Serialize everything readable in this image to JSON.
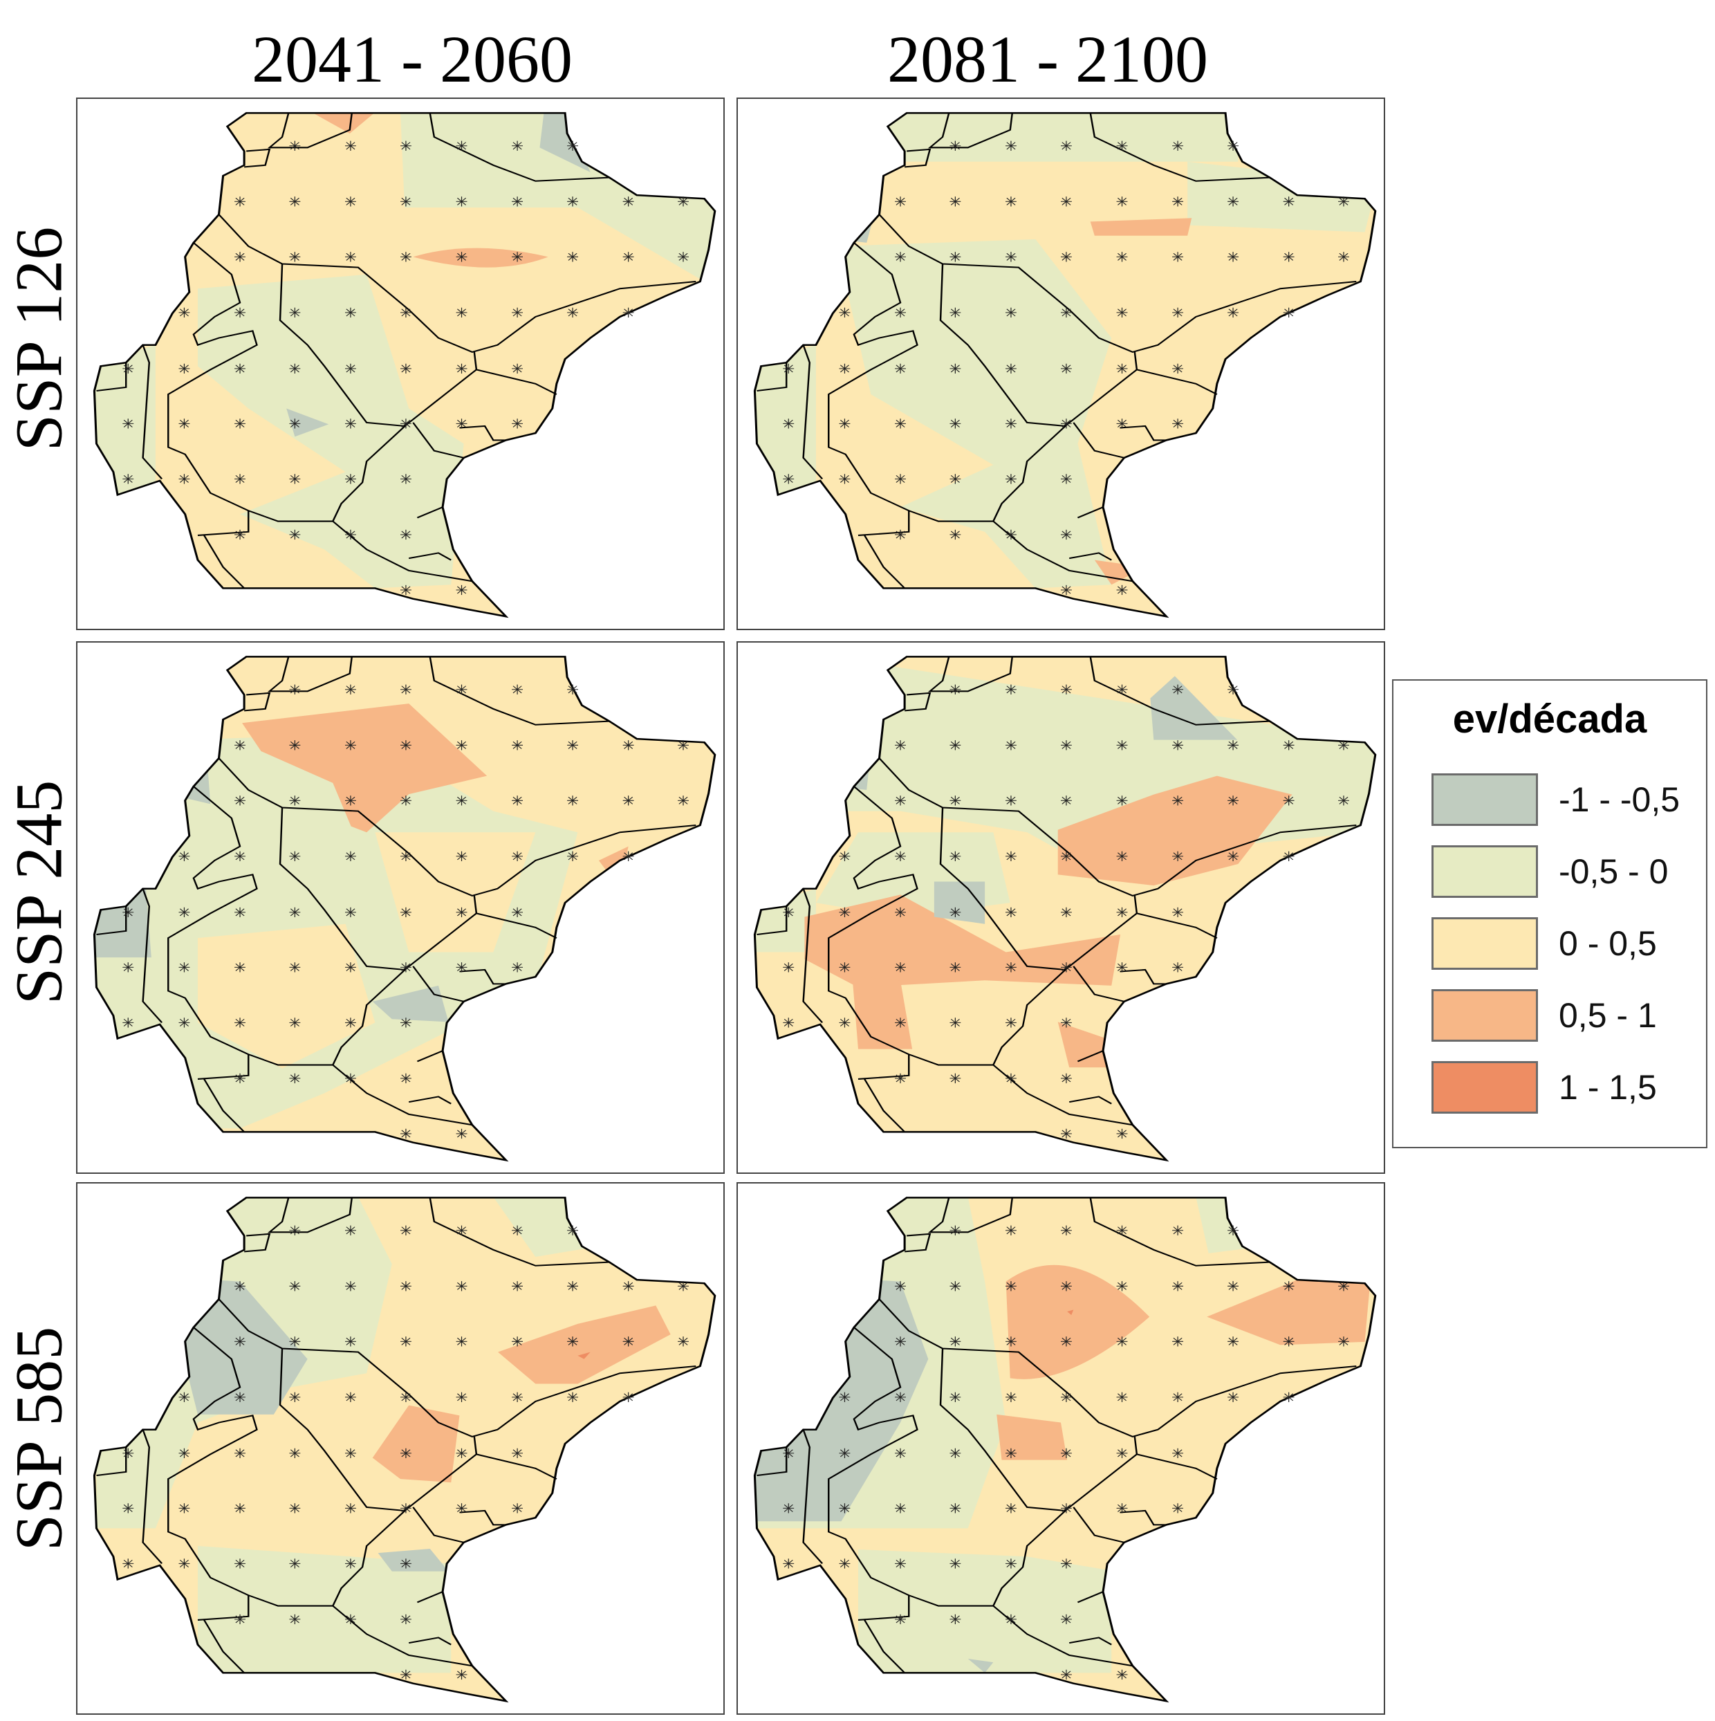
{
  "column_titles": [
    "2041 - 2060",
    "2081 - 2100"
  ],
  "row_labels": [
    "SSP 126",
    "SSP 245",
    "SSP 585"
  ],
  "legend": {
    "title": "ev/década",
    "items": [
      {
        "label": "-1 - -0,5",
        "color": "#c0ccbf"
      },
      {
        "label": "-0,5 - 0",
        "color": "#e6ebc3"
      },
      {
        "label": "0 - 0,5",
        "color": "#fde8b2"
      },
      {
        "label": "0,5 - 1",
        "color": "#f7b787"
      },
      {
        "label": "1 - 1,5",
        "color": "#ee8d63"
      }
    ]
  },
  "panels": [
    {
      "scenario": "SSP 126",
      "period": "2041 - 2060"
    },
    {
      "scenario": "SSP 126",
      "period": "2081 - 2100"
    },
    {
      "scenario": "SSP 245",
      "period": "2041 - 2060"
    },
    {
      "scenario": "SSP 245",
      "period": "2081 - 2100"
    },
    {
      "scenario": "SSP 585",
      "period": "2041 - 2060"
    },
    {
      "scenario": "SSP 585",
      "period": "2081 - 2100"
    }
  ]
}
